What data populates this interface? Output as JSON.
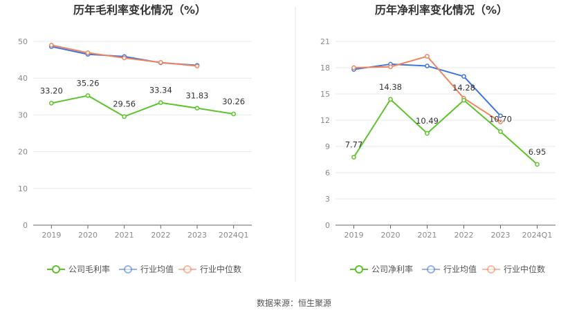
{
  "source": "数据来源：恒生聚源",
  "chart_data": [
    {
      "type": "line",
      "title": "历年毛利率变化情况（%）",
      "categories": [
        "2019",
        "2020",
        "2021",
        "2022",
        "2023",
        "2024Q1"
      ],
      "ylim": [
        0,
        50
      ],
      "yticks": [
        0,
        10,
        20,
        30,
        40,
        50
      ],
      "grid": true,
      "legend_position": "bottom",
      "series": [
        {
          "name": "公司毛利率",
          "color": "#5cc42a",
          "values": [
            33.2,
            35.26,
            29.56,
            33.34,
            31.83,
            30.26
          ],
          "labels": [
            "33.20",
            "35.26",
            "29.56",
            "33.34",
            "31.83",
            "30.26"
          ]
        },
        {
          "name": "行业均值",
          "color": "#3f74e0",
          "values": [
            48.6,
            46.5,
            45.9,
            44.2,
            43.5,
            null
          ]
        },
        {
          "name": "行业中位数",
          "color": "#f0845a",
          "values": [
            49.0,
            46.9,
            45.5,
            44.3,
            43.3,
            null
          ]
        }
      ]
    },
    {
      "type": "line",
      "title": "历年净利率变化情况（%）",
      "categories": [
        "2019",
        "2020",
        "2021",
        "2022",
        "2023",
        "2024Q1"
      ],
      "ylim": [
        0,
        21
      ],
      "yticks": [
        0,
        3,
        6,
        9,
        12,
        15,
        18,
        21
      ],
      "grid": true,
      "legend_position": "bottom",
      "series": [
        {
          "name": "公司净利率",
          "color": "#5cc42a",
          "values": [
            7.77,
            14.38,
            10.49,
            14.28,
            10.7,
            6.95
          ],
          "labels": [
            "7.77",
            "14.38",
            "10.49",
            "14.28",
            "10.70",
            "6.95"
          ]
        },
        {
          "name": "行业均值",
          "color": "#3f74e0",
          "values": [
            17.8,
            18.4,
            18.2,
            17.0,
            12.5,
            null
          ]
        },
        {
          "name": "行业中位数",
          "color": "#f0845a",
          "values": [
            18.0,
            18.1,
            19.3,
            14.5,
            11.8,
            null
          ]
        }
      ]
    }
  ]
}
